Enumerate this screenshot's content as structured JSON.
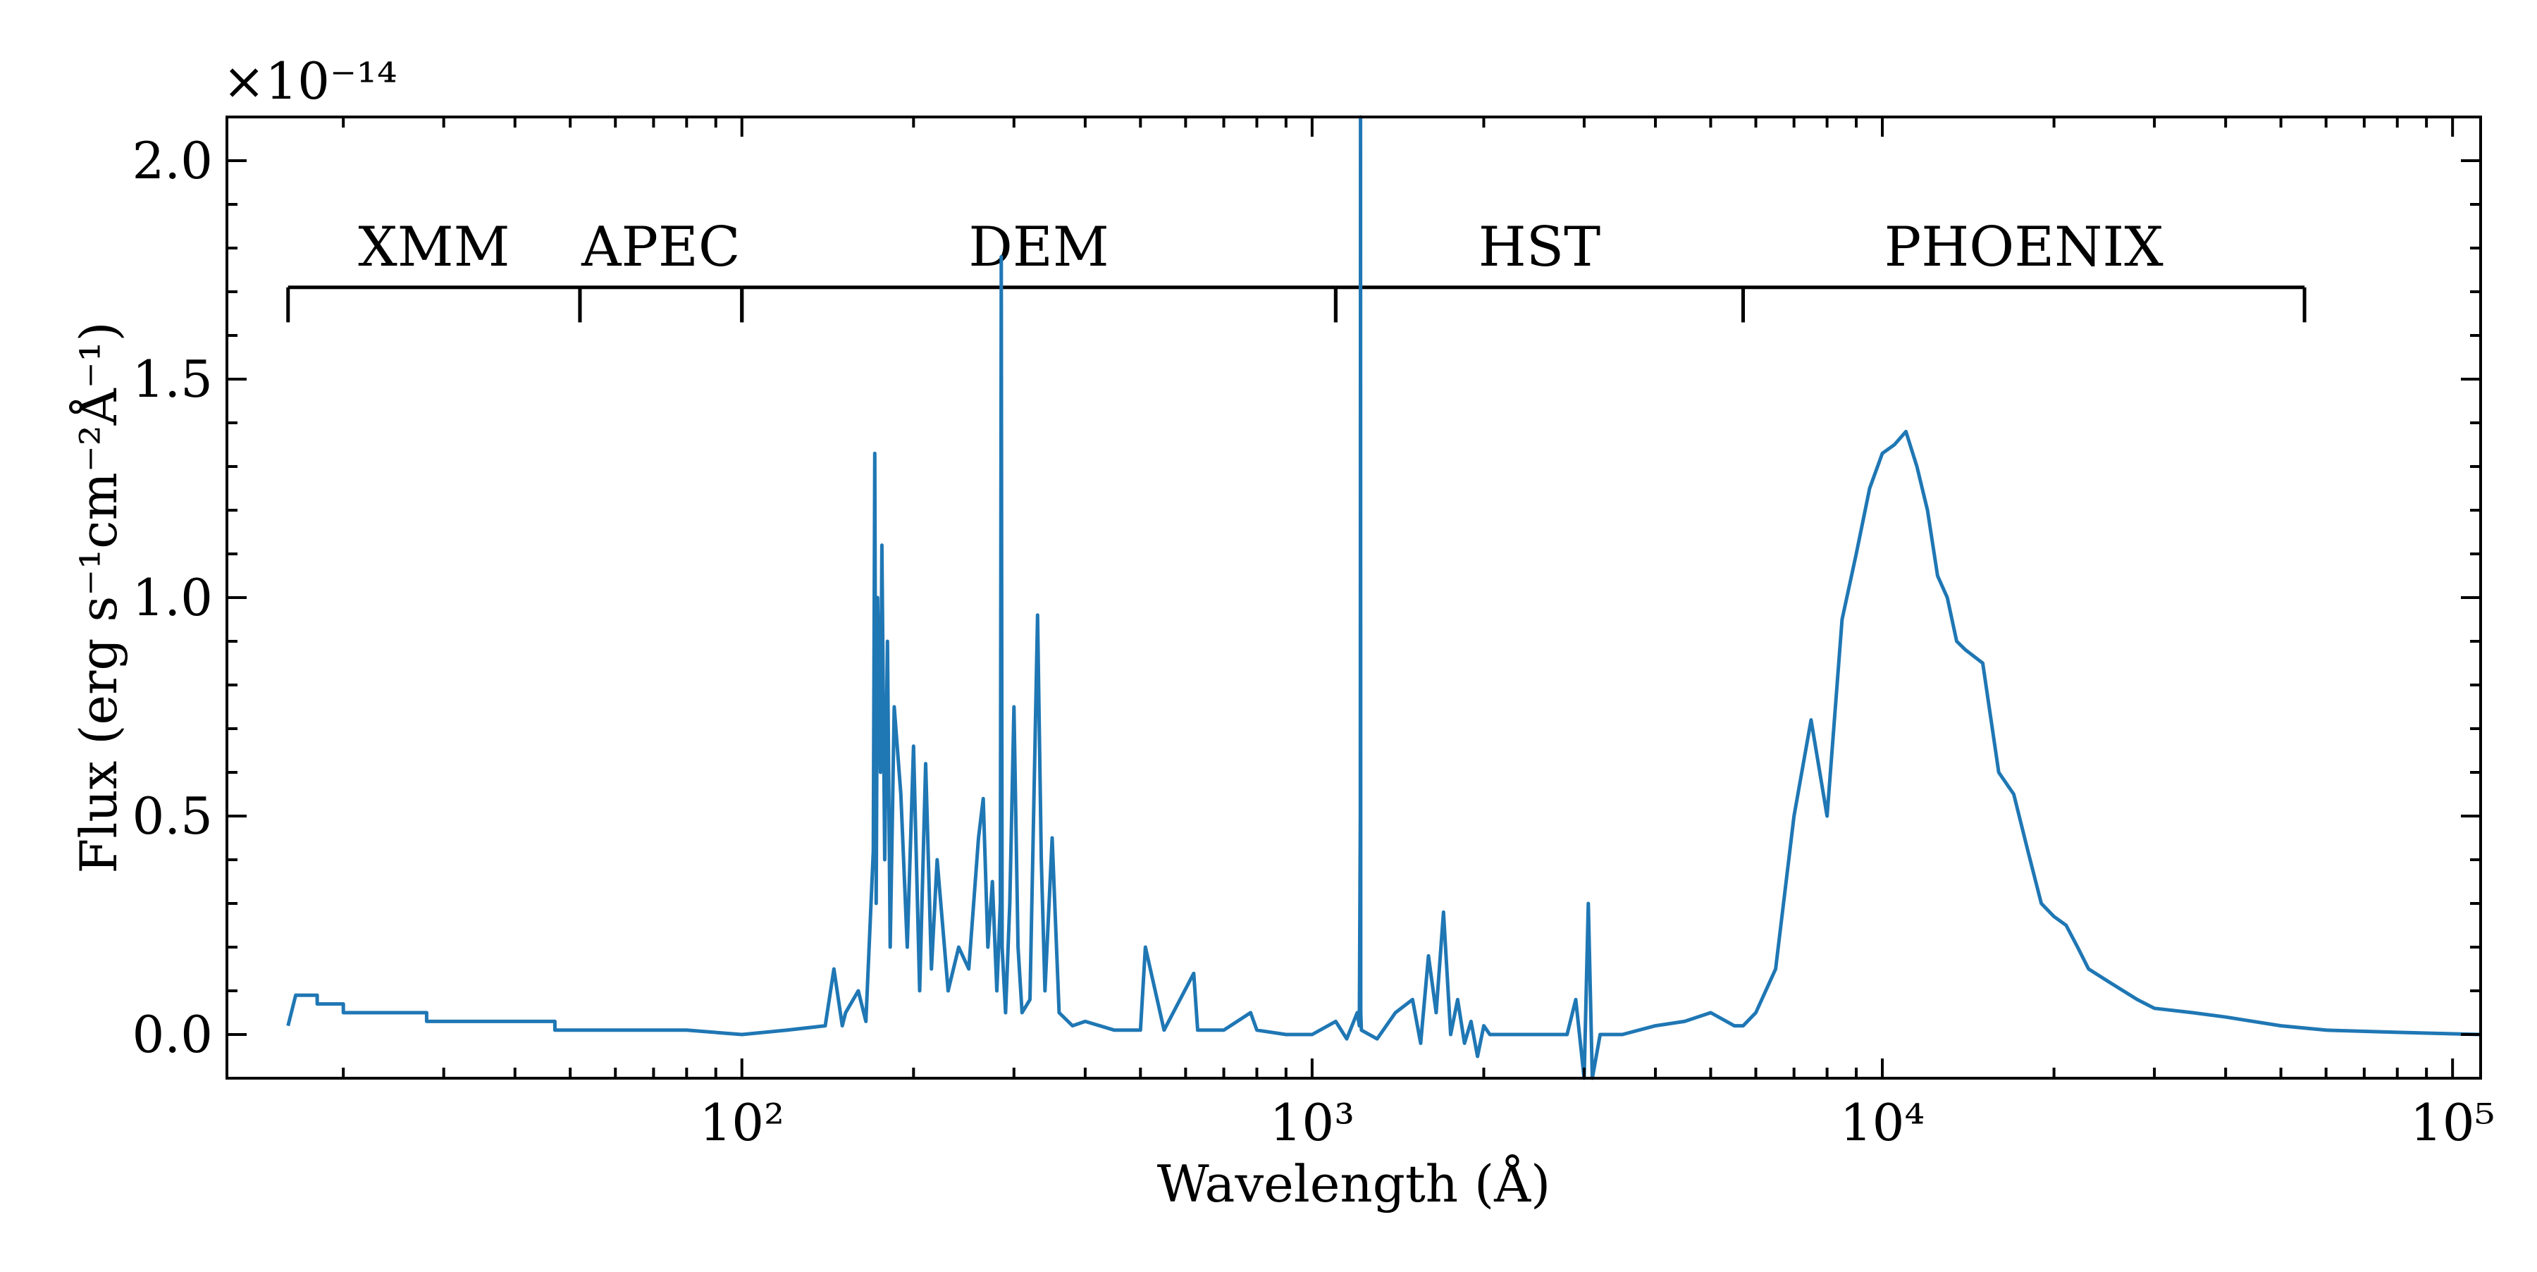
{
  "chart_data": {
    "type": "line",
    "xlabel": "Wavelength (Å)",
    "ylabel": "Flux (erg s⁻¹cm⁻²Å⁻¹)",
    "y_multiplier": "×10⁻¹⁴",
    "x_scale": "log",
    "xlim": [
      12.5,
      112000
    ],
    "ylim": [
      -0.1,
      2.1
    ],
    "x_ticks": [
      {
        "value": 100,
        "label": "10²"
      },
      {
        "value": 1000,
        "label": "10³"
      },
      {
        "value": 10000,
        "label": "10⁴"
      },
      {
        "value": 100000,
        "label": "10⁵"
      }
    ],
    "y_ticks": [
      {
        "value": 0.0,
        "label": "0.0"
      },
      {
        "value": 0.5,
        "label": "0.5"
      },
      {
        "value": 1.0,
        "label": "1.0"
      },
      {
        "value": 1.5,
        "label": "1.5"
      },
      {
        "value": 2.0,
        "label": "2.0"
      }
    ],
    "grid": false,
    "line_color": "#1f77b4",
    "regions": [
      {
        "label": "XMM",
        "x_start": 16,
        "x_end": 52
      },
      {
        "label": "APEC",
        "x_start": 52,
        "x_end": 100
      },
      {
        "label": "DEM",
        "x_start": 100,
        "x_end": 1100
      },
      {
        "label": "HST",
        "x_start": 1100,
        "x_end": 5700
      },
      {
        "label": "PHOENIX",
        "x_start": 5700,
        "x_end": 55000
      }
    ],
    "series": [
      {
        "x": [
          16,
          16,
          16.5,
          17,
          18,
          18,
          20,
          20,
          28,
          28,
          36,
          36,
          47,
          47,
          60,
          80,
          100,
          120,
          140,
          145,
          150,
          152,
          160,
          165,
          170,
          171,
          172,
          173,
          175,
          176,
          178,
          180,
          182,
          185,
          190,
          195,
          200,
          205,
          210,
          215,
          220,
          230,
          240,
          250,
          260,
          265,
          270,
          275,
          280,
          284,
          285,
          286,
          290,
          295,
          300,
          305,
          310,
          320,
          330,
          335,
          340,
          350,
          360,
          380,
          400,
          450,
          500,
          510,
          550,
          620,
          630,
          700,
          780,
          800,
          900,
          1000,
          1100,
          1150,
          1200,
          1210,
          1215,
          1216,
          1217,
          1220,
          1300,
          1400,
          1500,
          1550,
          1600,
          1650,
          1700,
          1750,
          1800,
          1850,
          1900,
          1950,
          2000,
          2050,
          2100,
          2500,
          2800,
          2900,
          3000,
          3050,
          3100,
          3200,
          3500,
          4000,
          4500,
          5000,
          5500,
          5700,
          6000,
          6500,
          7000,
          7500,
          8000,
          8500,
          9000,
          9500,
          10000,
          10500,
          11000,
          11500,
          12000,
          12500,
          13000,
          13500,
          14000,
          15000,
          16000,
          17000,
          18000,
          19000,
          20000,
          21000,
          22000,
          23000,
          25000,
          28000,
          30000,
          35000,
          40000,
          50000,
          60000,
          80000,
          112000
        ],
        "y": [
          0.02,
          0.02,
          0.09,
          0.09,
          0.09,
          0.07,
          0.07,
          0.05,
          0.05,
          0.03,
          0.03,
          0.03,
          0.03,
          0.01,
          0.01,
          0.01,
          0.0,
          0.01,
          0.02,
          0.15,
          0.02,
          0.05,
          0.1,
          0.03,
          0.42,
          1.33,
          0.3,
          1.0,
          0.6,
          1.12,
          0.4,
          0.9,
          0.2,
          0.75,
          0.55,
          0.2,
          0.66,
          0.1,
          0.62,
          0.15,
          0.4,
          0.1,
          0.2,
          0.15,
          0.45,
          0.54,
          0.2,
          0.35,
          0.1,
          0.3,
          1.78,
          0.2,
          0.05,
          0.3,
          0.75,
          0.2,
          0.05,
          0.08,
          0.96,
          0.4,
          0.1,
          0.45,
          0.05,
          0.02,
          0.03,
          0.01,
          0.01,
          0.2,
          0.01,
          0.14,
          0.01,
          0.01,
          0.05,
          0.01,
          0.0,
          0.0,
          0.03,
          -0.01,
          0.05,
          0.02,
          0.5,
          2.1,
          0.05,
          0.01,
          -0.01,
          0.05,
          0.08,
          -0.02,
          0.18,
          0.05,
          0.28,
          0.0,
          0.08,
          -0.02,
          0.03,
          -0.05,
          0.02,
          0.0,
          0.0,
          0.0,
          0.0,
          0.08,
          -0.1,
          0.3,
          -0.1,
          0.0,
          0.0,
          0.02,
          0.03,
          0.05,
          0.02,
          0.02,
          0.05,
          0.15,
          0.5,
          0.72,
          0.5,
          0.95,
          1.1,
          1.25,
          1.33,
          1.35,
          1.38,
          1.3,
          1.2,
          1.05,
          1.0,
          0.9,
          0.88,
          0.85,
          0.6,
          0.55,
          0.42,
          0.3,
          0.27,
          0.25,
          0.2,
          0.15,
          0.12,
          0.08,
          0.06,
          0.05,
          0.04,
          0.02,
          0.01,
          0.005,
          0.0
        ]
      }
    ]
  }
}
